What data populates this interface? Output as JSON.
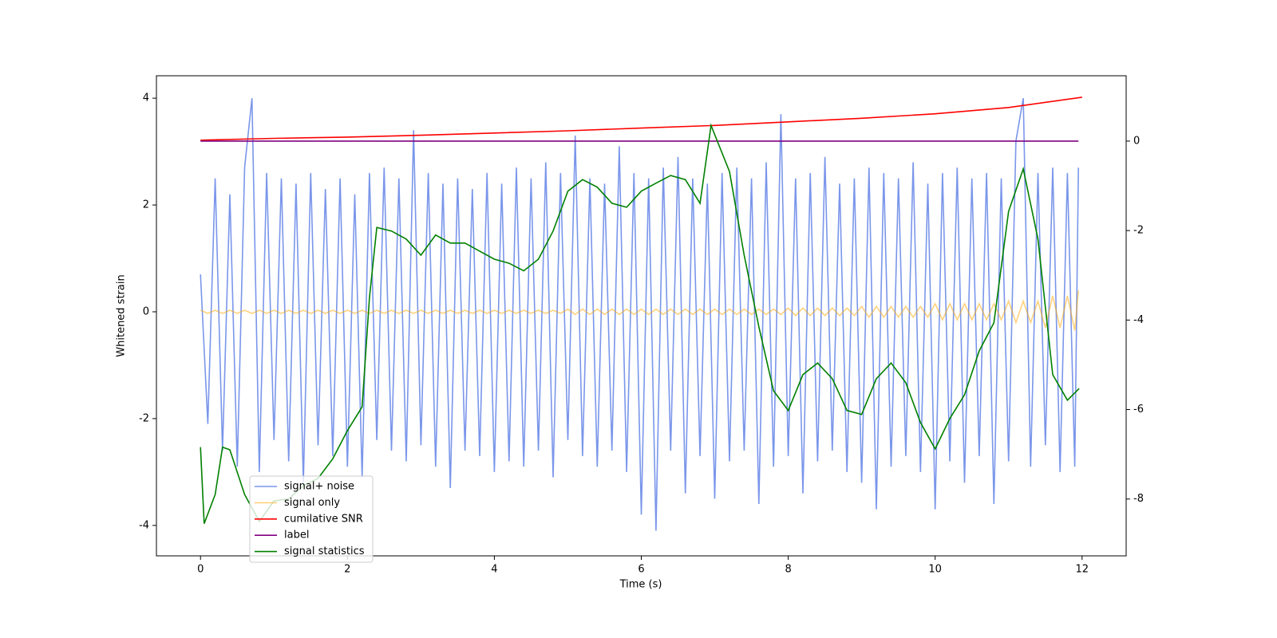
{
  "chart_data": {
    "type": "line",
    "xlabel": "Time (s)",
    "ylabel": "Whitened strain",
    "xlim": [
      -0.6,
      12.6
    ],
    "xticks": [
      0,
      2,
      4,
      6,
      8,
      10,
      12
    ],
    "ylim": [
      -4.57,
      4.42
    ],
    "yticks": [
      -4,
      -2,
      0,
      2,
      4
    ],
    "y2lim": [
      -9.27,
      1.46
    ],
    "y2ticks": [
      -8,
      -6,
      -4,
      -2,
      0
    ],
    "legend": "lower left",
    "series": [
      {
        "name": "signal+ noise",
        "color": "#4169e1",
        "alpha": 0.7,
        "x": [
          0,
          0.1,
          0.2,
          0.3,
          0.4,
          0.5,
          0.6,
          0.7,
          0.8,
          0.9,
          1,
          1.1,
          1.2,
          1.3,
          1.4,
          1.5,
          1.6,
          1.7,
          1.8,
          1.9,
          2,
          2.1,
          2.2,
          2.3,
          2.4,
          2.5,
          2.6,
          2.7,
          2.8,
          2.9,
          3,
          3.1,
          3.2,
          3.3,
          3.4,
          3.5,
          3.6,
          3.7,
          3.8,
          3.9,
          4,
          4.1,
          4.2,
          4.3,
          4.4,
          4.5,
          4.6,
          4.7,
          4.8,
          4.9,
          5,
          5.1,
          5.2,
          5.3,
          5.4,
          5.5,
          5.6,
          5.7,
          5.8,
          5.9,
          6,
          6.1,
          6.2,
          6.3,
          6.4,
          6.5,
          6.6,
          6.7,
          6.8,
          6.9,
          7,
          7.1,
          7.2,
          7.3,
          7.4,
          7.5,
          7.6,
          7.7,
          7.8,
          7.9,
          8,
          8.1,
          8.2,
          8.3,
          8.4,
          8.5,
          8.6,
          8.7,
          8.8,
          8.9,
          9,
          9.1,
          9.2,
          9.3,
          9.4,
          9.5,
          9.6,
          9.7,
          9.8,
          9.9,
          10,
          10.1,
          10.2,
          10.3,
          10.4,
          10.5,
          10.6,
          10.7,
          10.8,
          10.9,
          11,
          11.1,
          11.2,
          11.3,
          11.4,
          11.5,
          11.6,
          11.7,
          11.8,
          11.9,
          11.95
        ],
        "values": [
          0.7,
          -2.1,
          2.5,
          -2.6,
          2.2,
          -2.9,
          2.7,
          4.0,
          -3.0,
          2.6,
          -2.4,
          2.5,
          -2.8,
          2.4,
          -3.2,
          2.6,
          -2.5,
          2.3,
          -2.7,
          2.5,
          -2.9,
          2.2,
          -3.1,
          2.6,
          -2.4,
          2.7,
          -2.6,
          2.5,
          -2.8,
          3.4,
          -2.5,
          2.6,
          -2.9,
          2.4,
          -3.3,
          2.5,
          -2.6,
          2.3,
          -2.7,
          2.6,
          -3.0,
          2.4,
          -2.8,
          2.7,
          -2.9,
          2.5,
          -2.6,
          2.8,
          -3.1,
          2.6,
          -2.4,
          3.3,
          -2.7,
          2.5,
          -2.9,
          2.4,
          -2.6,
          3.1,
          -3.0,
          2.6,
          -3.8,
          2.5,
          -4.1,
          2.7,
          -2.6,
          2.9,
          -3.4,
          2.5,
          -2.7,
          2.4,
          -3.5,
          2.6,
          -2.8,
          2.7,
          -2.6,
          2.5,
          -3.6,
          2.8,
          -2.9,
          3.7,
          -2.7,
          2.5,
          -3.4,
          2.6,
          -2.8,
          2.9,
          -2.6,
          2.4,
          -3.0,
          2.5,
          -3.2,
          2.7,
          -3.7,
          2.6,
          -2.9,
          2.5,
          -2.7,
          2.8,
          -3.0,
          2.4,
          -3.7,
          2.6,
          -2.8,
          2.7,
          -3.2,
          2.5,
          -2.7,
          2.6,
          -3.6,
          2.5,
          -2.8,
          3.2,
          4.0,
          -2.9,
          2.6,
          -2.5,
          2.7,
          -3.0,
          2.6,
          -2.9,
          2.7
        ]
      },
      {
        "name": "signal only",
        "color": "#ffa500",
        "alpha": 0.5,
        "x": [
          0,
          0.1,
          0.2,
          0.3,
          0.4,
          0.5,
          0.6,
          0.7,
          0.8,
          0.9,
          1,
          1.1,
          1.2,
          1.3,
          1.4,
          1.5,
          1.6,
          1.7,
          1.8,
          1.9,
          2,
          2.1,
          2.2,
          2.3,
          2.4,
          2.5,
          2.6,
          2.7,
          2.8,
          2.9,
          3,
          3.1,
          3.2,
          3.3,
          3.4,
          3.5,
          3.6,
          3.7,
          3.8,
          3.9,
          4,
          4.1,
          4.2,
          4.3,
          4.4,
          4.5,
          4.6,
          4.7,
          4.8,
          4.9,
          5,
          5.1,
          5.2,
          5.3,
          5.4,
          5.5,
          5.6,
          5.7,
          5.8,
          5.9,
          6,
          6.1,
          6.2,
          6.3,
          6.4,
          6.5,
          6.6,
          6.7,
          6.8,
          6.9,
          7,
          7.1,
          7.2,
          7.3,
          7.4,
          7.5,
          7.6,
          7.7,
          7.8,
          7.9,
          8,
          8.1,
          8.2,
          8.3,
          8.4,
          8.5,
          8.6,
          8.7,
          8.8,
          8.9,
          9,
          9.1,
          9.2,
          9.3,
          9.4,
          9.5,
          9.6,
          9.7,
          9.8,
          9.9,
          10,
          10.1,
          10.2,
          10.3,
          10.4,
          10.5,
          10.6,
          10.7,
          10.8,
          10.9,
          11,
          11.1,
          11.2,
          11.3,
          11.4,
          11.5,
          11.6,
          11.7,
          11.8,
          11.9,
          11.95
        ],
        "values": [
          0.03,
          -0.03,
          0.03,
          -0.03,
          0.03,
          -0.03,
          0.03,
          -0.03,
          0.03,
          -0.03,
          0.03,
          -0.03,
          0.03,
          -0.03,
          0.03,
          -0.03,
          0.03,
          -0.03,
          0.03,
          -0.03,
          0.03,
          -0.03,
          0.03,
          -0.03,
          0.03,
          -0.03,
          0.03,
          -0.03,
          0.03,
          -0.03,
          0.03,
          -0.03,
          0.03,
          -0.03,
          0.03,
          -0.03,
          0.03,
          -0.03,
          0.03,
          -0.03,
          0.03,
          -0.03,
          0.03,
          -0.03,
          0.03,
          -0.03,
          0.03,
          -0.03,
          0.03,
          -0.03,
          0.05,
          -0.05,
          0.05,
          -0.05,
          0.05,
          -0.05,
          0.05,
          -0.05,
          0.05,
          -0.05,
          0.05,
          -0.05,
          0.05,
          -0.05,
          0.05,
          -0.05,
          0.05,
          -0.05,
          0.05,
          -0.05,
          0.05,
          -0.05,
          0.05,
          -0.05,
          0.05,
          -0.05,
          0.05,
          -0.05,
          0.05,
          -0.05,
          0.07,
          -0.07,
          0.07,
          -0.07,
          0.07,
          -0.07,
          0.07,
          -0.07,
          0.07,
          -0.07,
          0.1,
          -0.1,
          0.1,
          -0.1,
          0.1,
          -0.1,
          0.1,
          -0.1,
          0.1,
          -0.1,
          0.15,
          -0.15,
          0.15,
          -0.15,
          0.15,
          -0.15,
          0.15,
          -0.15,
          0.15,
          -0.15,
          0.2,
          -0.2,
          0.2,
          -0.2,
          0.2,
          -0.3,
          0.3,
          -0.3,
          0.3,
          -0.35,
          0.4
        ]
      },
      {
        "name": "cumilative SNR",
        "color": "#ff0000",
        "axis": "y2",
        "x": [
          0,
          1,
          2,
          3,
          4,
          5,
          6,
          7,
          8,
          9,
          10,
          11,
          12
        ],
        "values": [
          0.02,
          0.06,
          0.09,
          0.13,
          0.18,
          0.23,
          0.29,
          0.35,
          0.43,
          0.51,
          0.61,
          0.75,
          0.98
        ]
      },
      {
        "name": "label",
        "color": "#800080",
        "axis": "y2",
        "x": [
          0,
          11.95
        ],
        "values": [
          0,
          0
        ]
      },
      {
        "name": "signal statistics",
        "color": "#008000",
        "axis": "y2",
        "x": [
          0,
          0.05,
          0.2,
          0.3,
          0.4,
          0.6,
          0.8,
          1,
          1.2,
          1.4,
          1.6,
          1.8,
          2,
          2.2,
          2.3,
          2.4,
          2.6,
          2.8,
          3,
          3.2,
          3.4,
          3.6,
          3.8,
          4,
          4.2,
          4.4,
          4.6,
          4.8,
          5,
          5.2,
          5.4,
          5.6,
          5.8,
          6,
          6.2,
          6.4,
          6.6,
          6.8,
          6.95,
          7.2,
          7.4,
          7.6,
          7.8,
          8,
          8.2,
          8.4,
          8.6,
          8.8,
          9,
          9.2,
          9.4,
          9.6,
          9.8,
          10,
          10.2,
          10.4,
          10.6,
          10.8,
          11,
          11.2,
          11.4,
          11.6,
          11.8,
          11.96
        ],
        "values": [
          -6.84,
          -8.55,
          -7.9,
          -6.84,
          -6.9,
          -7.9,
          -8.5,
          -8.04,
          -8.0,
          -7.7,
          -7.54,
          -7.1,
          -6.47,
          -5.94,
          -3.5,
          -1.93,
          -2.01,
          -2.19,
          -2.55,
          -2.1,
          -2.28,
          -2.28,
          -2.46,
          -2.64,
          -2.73,
          -2.9,
          -2.64,
          -2.01,
          -1.12,
          -0.86,
          -1.03,
          -1.39,
          -1.48,
          -1.12,
          -0.94,
          -0.77,
          -0.86,
          -1.39,
          0.35,
          -0.68,
          -2.55,
          -4.15,
          -5.58,
          -6.02,
          -5.22,
          -4.96,
          -5.31,
          -6.02,
          -6.11,
          -5.31,
          -4.96,
          -5.4,
          -6.29,
          -6.88,
          -6.2,
          -5.67,
          -4.69,
          -4.06,
          -1.57,
          -0.62,
          -2.19,
          -5.22,
          -5.79,
          -5.53
        ]
      }
    ]
  }
}
